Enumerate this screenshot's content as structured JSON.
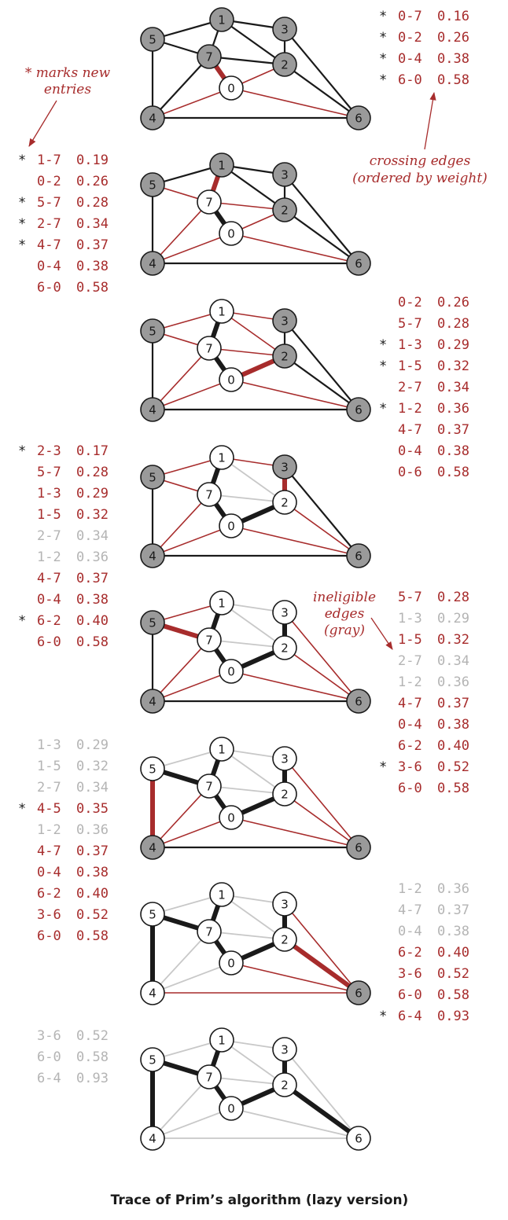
{
  "caption": "Trace of Prim’s algorithm (lazy version)",
  "annotations": {
    "new_entries": [
      "* marks new",
      "entries"
    ],
    "crossing_edges": [
      "crossing edges",
      "(ordered by weight)"
    ],
    "ineligible_edges": [
      "ineligible",
      "edges",
      "(gray)"
    ]
  },
  "colors": {
    "red": "#a72c2c",
    "gray": "#c8c8c8",
    "black": "#1a1a1a",
    "vertex_gray": "#9a9a9a",
    "text_gray": "#b4b4b4"
  },
  "vertices": [
    "0",
    "1",
    "2",
    "3",
    "4",
    "5",
    "6",
    "7"
  ],
  "edges": [
    {
      "id": "4-5",
      "u": 4,
      "v": 5
    },
    {
      "id": "4-7",
      "u": 4,
      "v": 7
    },
    {
      "id": "5-7",
      "u": 5,
      "v": 7
    },
    {
      "id": "0-7",
      "u": 0,
      "v": 7
    },
    {
      "id": "1-5",
      "u": 1,
      "v": 5
    },
    {
      "id": "0-4",
      "u": 0,
      "v": 4
    },
    {
      "id": "2-3",
      "u": 2,
      "v": 3
    },
    {
      "id": "1-7",
      "u": 1,
      "v": 7
    },
    {
      "id": "0-2",
      "u": 0,
      "v": 2
    },
    {
      "id": "1-2",
      "u": 1,
      "v": 2
    },
    {
      "id": "1-3",
      "u": 1,
      "v": 3
    },
    {
      "id": "2-7",
      "u": 2,
      "v": 7
    },
    {
      "id": "6-2",
      "u": 6,
      "v": 2
    },
    {
      "id": "3-6",
      "u": 3,
      "v": 6
    },
    {
      "id": "6-0",
      "u": 6,
      "v": 0
    },
    {
      "id": "6-4",
      "u": 6,
      "v": 4
    }
  ],
  "steps": [
    {
      "in_tree": [
        0
      ],
      "new_edge": "0-7",
      "tree_edges": [],
      "red": [
        "0-2",
        "0-4",
        "6-0"
      ],
      "gray": [],
      "pq": [
        {
          "new": true,
          "edge": "0-7",
          "weight": "0.16",
          "state": "active"
        },
        {
          "new": true,
          "edge": "0-2",
          "weight": "0.26",
          "state": "active"
        },
        {
          "new": true,
          "edge": "0-4",
          "weight": "0.38",
          "state": "active"
        },
        {
          "new": true,
          "edge": "6-0",
          "weight": "0.58",
          "state": "active"
        }
      ]
    },
    {
      "in_tree": [
        0,
        7
      ],
      "new_edge": "1-7",
      "tree_edges": [
        "0-7"
      ],
      "red": [
        "0-2",
        "0-4",
        "6-0",
        "5-7",
        "2-7",
        "4-7"
      ],
      "gray": [],
      "pq": [
        {
          "new": true,
          "edge": "1-7",
          "weight": "0.19",
          "state": "active"
        },
        {
          "new": false,
          "edge": "0-2",
          "weight": "0.26",
          "state": "active"
        },
        {
          "new": true,
          "edge": "5-7",
          "weight": "0.28",
          "state": "active"
        },
        {
          "new": true,
          "edge": "2-7",
          "weight": "0.34",
          "state": "active"
        },
        {
          "new": true,
          "edge": "4-7",
          "weight": "0.37",
          "state": "active"
        },
        {
          "new": false,
          "edge": "0-4",
          "weight": "0.38",
          "state": "active"
        },
        {
          "new": false,
          "edge": "6-0",
          "weight": "0.58",
          "state": "active"
        }
      ]
    },
    {
      "in_tree": [
        0,
        7,
        1
      ],
      "new_edge": "0-2",
      "tree_edges": [
        "0-7",
        "1-7"
      ],
      "red": [
        "5-7",
        "1-3",
        "1-5",
        "2-7",
        "1-2",
        "4-7",
        "0-4",
        "6-0"
      ],
      "gray": [],
      "pq": [
        {
          "new": false,
          "edge": "0-2",
          "weight": "0.26",
          "state": "active"
        },
        {
          "new": false,
          "edge": "5-7",
          "weight": "0.28",
          "state": "active"
        },
        {
          "new": true,
          "edge": "1-3",
          "weight": "0.29",
          "state": "active"
        },
        {
          "new": true,
          "edge": "1-5",
          "weight": "0.32",
          "state": "active"
        },
        {
          "new": false,
          "edge": "2-7",
          "weight": "0.34",
          "state": "active"
        },
        {
          "new": true,
          "edge": "1-2",
          "weight": "0.36",
          "state": "active"
        },
        {
          "new": false,
          "edge": "4-7",
          "weight": "0.37",
          "state": "active"
        },
        {
          "new": false,
          "edge": "0-4",
          "weight": "0.38",
          "state": "active"
        },
        {
          "new": false,
          "edge": "0-6",
          "weight": "0.58",
          "state": "active"
        }
      ]
    },
    {
      "in_tree": [
        0,
        7,
        1,
        2
      ],
      "new_edge": "2-3",
      "tree_edges": [
        "0-7",
        "1-7",
        "0-2"
      ],
      "red": [
        "5-7",
        "1-3",
        "1-5",
        "4-7",
        "0-4",
        "6-2",
        "6-0"
      ],
      "gray": [
        "2-7",
        "1-2"
      ],
      "pq": [
        {
          "new": true,
          "edge": "2-3",
          "weight": "0.17",
          "state": "active"
        },
        {
          "new": false,
          "edge": "5-7",
          "weight": "0.28",
          "state": "active"
        },
        {
          "new": false,
          "edge": "1-3",
          "weight": "0.29",
          "state": "active"
        },
        {
          "new": false,
          "edge": "1-5",
          "weight": "0.32",
          "state": "active"
        },
        {
          "new": false,
          "edge": "2-7",
          "weight": "0.34",
          "state": "ineligible"
        },
        {
          "new": false,
          "edge": "1-2",
          "weight": "0.36",
          "state": "ineligible"
        },
        {
          "new": false,
          "edge": "4-7",
          "weight": "0.37",
          "state": "active"
        },
        {
          "new": false,
          "edge": "0-4",
          "weight": "0.38",
          "state": "active"
        },
        {
          "new": true,
          "edge": "6-2",
          "weight": "0.40",
          "state": "active"
        },
        {
          "new": false,
          "edge": "6-0",
          "weight": "0.58",
          "state": "active"
        }
      ]
    },
    {
      "in_tree": [
        0,
        7,
        1,
        2,
        3
      ],
      "new_edge": "5-7",
      "tree_edges": [
        "0-7",
        "1-7",
        "0-2",
        "2-3"
      ],
      "red": [
        "1-5",
        "4-7",
        "0-4",
        "6-2",
        "3-6",
        "6-0"
      ],
      "gray": [
        "1-3",
        "2-7",
        "1-2"
      ],
      "pq": [
        {
          "new": false,
          "edge": "5-7",
          "weight": "0.28",
          "state": "active"
        },
        {
          "new": false,
          "edge": "1-3",
          "weight": "0.29",
          "state": "ineligible"
        },
        {
          "new": false,
          "edge": "1-5",
          "weight": "0.32",
          "state": "active"
        },
        {
          "new": false,
          "edge": "2-7",
          "weight": "0.34",
          "state": "ineligible"
        },
        {
          "new": false,
          "edge": "1-2",
          "weight": "0.36",
          "state": "ineligible"
        },
        {
          "new": false,
          "edge": "4-7",
          "weight": "0.37",
          "state": "active"
        },
        {
          "new": false,
          "edge": "0-4",
          "weight": "0.38",
          "state": "active"
        },
        {
          "new": false,
          "edge": "6-2",
          "weight": "0.40",
          "state": "active"
        },
        {
          "new": true,
          "edge": "3-6",
          "weight": "0.52",
          "state": "active"
        },
        {
          "new": false,
          "edge": "6-0",
          "weight": "0.58",
          "state": "active"
        }
      ]
    },
    {
      "in_tree": [
        0,
        7,
        1,
        2,
        3,
        5
      ],
      "new_edge": "4-5",
      "tree_edges": [
        "0-7",
        "1-7",
        "0-2",
        "2-3",
        "5-7"
      ],
      "red": [
        "4-7",
        "0-4",
        "6-2",
        "3-6",
        "6-0"
      ],
      "gray": [
        "1-3",
        "1-5",
        "2-7",
        "1-2"
      ],
      "pq": [
        {
          "new": false,
          "edge": "1-3",
          "weight": "0.29",
          "state": "ineligible"
        },
        {
          "new": false,
          "edge": "1-5",
          "weight": "0.32",
          "state": "ineligible"
        },
        {
          "new": false,
          "edge": "2-7",
          "weight": "0.34",
          "state": "ineligible"
        },
        {
          "new": true,
          "edge": "4-5",
          "weight": "0.35",
          "state": "active"
        },
        {
          "new": false,
          "edge": "1-2",
          "weight": "0.36",
          "state": "ineligible"
        },
        {
          "new": false,
          "edge": "4-7",
          "weight": "0.37",
          "state": "active"
        },
        {
          "new": false,
          "edge": "0-4",
          "weight": "0.38",
          "state": "active"
        },
        {
          "new": false,
          "edge": "6-2",
          "weight": "0.40",
          "state": "active"
        },
        {
          "new": false,
          "edge": "3-6",
          "weight": "0.52",
          "state": "active"
        },
        {
          "new": false,
          "edge": "6-0",
          "weight": "0.58",
          "state": "active"
        }
      ]
    },
    {
      "in_tree": [
        0,
        7,
        1,
        2,
        3,
        5,
        4
      ],
      "new_edge": "6-2",
      "tree_edges": [
        "0-7",
        "1-7",
        "0-2",
        "2-3",
        "5-7",
        "4-5"
      ],
      "red": [
        "3-6",
        "6-0",
        "6-4"
      ],
      "gray": [
        "1-3",
        "1-5",
        "2-7",
        "1-2",
        "4-7",
        "0-4"
      ],
      "pq": [
        {
          "new": false,
          "edge": "1-2",
          "weight": "0.36",
          "state": "ineligible"
        },
        {
          "new": false,
          "edge": "4-7",
          "weight": "0.37",
          "state": "ineligible"
        },
        {
          "new": false,
          "edge": "0-4",
          "weight": "0.38",
          "state": "ineligible"
        },
        {
          "new": false,
          "edge": "6-2",
          "weight": "0.40",
          "state": "active"
        },
        {
          "new": false,
          "edge": "3-6",
          "weight": "0.52",
          "state": "active"
        },
        {
          "new": false,
          "edge": "6-0",
          "weight": "0.58",
          "state": "active"
        },
        {
          "new": true,
          "edge": "6-4",
          "weight": "0.93",
          "state": "active"
        }
      ]
    },
    {
      "in_tree": [
        0,
        7,
        1,
        2,
        3,
        5,
        4,
        6
      ],
      "new_edge": "",
      "tree_edges": [
        "0-7",
        "1-7",
        "0-2",
        "2-3",
        "5-7",
        "4-5",
        "6-2"
      ],
      "red": [],
      "gray": [
        "1-3",
        "1-5",
        "2-7",
        "1-2",
        "4-7",
        "0-4",
        "3-6",
        "6-0",
        "6-4"
      ],
      "pq": [
        {
          "new": false,
          "edge": "3-6",
          "weight": "0.52",
          "state": "ineligible"
        },
        {
          "new": false,
          "edge": "6-0",
          "weight": "0.58",
          "state": "ineligible"
        },
        {
          "new": false,
          "edge": "6-4",
          "weight": "0.93",
          "state": "ineligible"
        }
      ]
    }
  ]
}
